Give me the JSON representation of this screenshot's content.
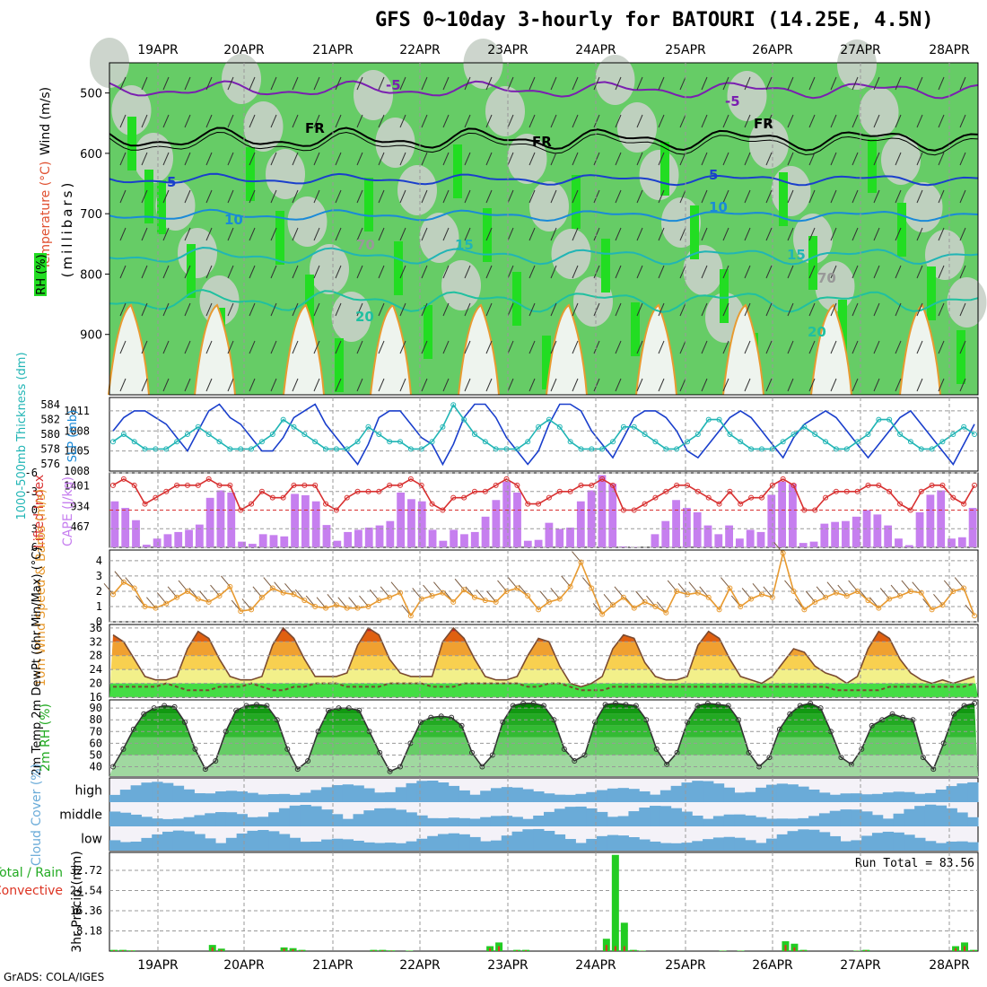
{
  "title": "GFS 0~10day 3-hourly for BATOURI (14.25E, 4.5N)",
  "footer": "GrADS: COLA/IGES",
  "days": [
    "19APR",
    "20APR",
    "21APR",
    "22APR",
    "23APR",
    "24APR",
    "25APR",
    "26APR",
    "27APR",
    "28APR"
  ],
  "colors": {
    "grid": "#999999",
    "frame": "#000000",
    "green_bright": "#22dd22",
    "green_mid": "#66cc66",
    "grey": "#c8d0c8",
    "purple": "#7a1fb0",
    "blue_dark": "#1a3fcc",
    "blue_mid": "#1a8ad8",
    "cyan": "#21b5b5",
    "orange": "#e89a30",
    "cape": "#c67fef",
    "lifted": "#d83030",
    "wind10": "#e89a30",
    "cloud": "#6aabd8",
    "precip_total": "#22cc22",
    "precip_conv": "#dd3322"
  },
  "chart_data": [
    {
      "panel": "upper_air",
      "type": "heatmap",
      "ylabel": "(millibars)",
      "legend_labels": [
        "Wind (m/s)",
        "Temperature (°C)",
        "RH (%)"
      ],
      "yticks": [
        500,
        600,
        700,
        800,
        900
      ],
      "ylim": [
        1000,
        450
      ],
      "contour_labels": [
        "-5",
        "-5",
        "FR",
        "FR",
        "FR",
        "5",
        "5",
        "10",
        "10",
        "15",
        "15",
        "20",
        "20",
        "70",
        "70"
      ]
    },
    {
      "panel": "slp_thickness",
      "type": "line",
      "ylabel_left": "1000-500mb Thickness (dm)",
      "ylabel_right": "SLP (mb)",
      "yticks_left": [
        576,
        578,
        580,
        582,
        584
      ],
      "yticks_right": [
        1005,
        1008,
        1011
      ],
      "extra_tick": "1008",
      "series": [
        {
          "name": "SLP",
          "axis": "right",
          "values": [
            1008,
            1010,
            1011,
            1011,
            1010,
            1009,
            1007,
            1005,
            1008,
            1011,
            1012,
            1010,
            1009,
            1007,
            1005,
            1005,
            1007,
            1010,
            1011,
            1012,
            1009,
            1007,
            1005,
            1003,
            1006,
            1010,
            1011,
            1011,
            1009,
            1007,
            1006,
            1003,
            1006,
            1010,
            1012,
            1012,
            1010,
            1007,
            1005,
            1003,
            1005,
            1009,
            1012,
            1012,
            1011,
            1008,
            1006,
            1004,
            1007,
            1010,
            1011,
            1011,
            1010,
            1008,
            1005,
            1004,
            1006,
            1008,
            1010,
            1011,
            1010,
            1008,
            1006,
            1004,
            1007,
            1009,
            1010,
            1011,
            1010,
            1008,
            1006,
            1004,
            1006,
            1008,
            1010,
            1011,
            1009,
            1007,
            1005,
            1003,
            1006,
            1009
          ]
        },
        {
          "name": "Thickness",
          "axis": "left",
          "values": [
            579,
            580,
            579,
            578,
            578,
            578,
            579,
            580,
            581,
            580,
            579,
            578,
            578,
            578,
            579,
            580,
            582,
            581,
            580,
            579,
            578,
            578,
            578,
            579,
            581,
            580,
            579,
            579,
            578,
            578,
            579,
            581,
            584,
            582,
            580,
            579,
            578,
            578,
            578,
            579,
            581,
            582,
            581,
            579,
            578,
            578,
            578,
            579,
            581,
            581,
            580,
            579,
            578,
            578,
            579,
            580,
            582,
            582,
            580,
            579,
            578,
            578,
            578,
            579,
            580,
            581,
            580,
            579,
            578,
            578,
            579,
            580,
            582,
            582,
            580,
            579,
            578,
            578,
            579,
            580,
            581,
            580
          ]
        }
      ]
    },
    {
      "panel": "cape_li",
      "type": "bar",
      "ylabel_left": "Lifted Index",
      "ylabel_right": "CAPE (J/kg)",
      "yticks_left": [
        -6,
        -3,
        0,
        3,
        6
      ],
      "yticks_right": [
        467,
        934,
        1401
      ],
      "series": [
        {
          "name": "CAPE",
          "values": [
            1050,
            900,
            620,
            60,
            200,
            300,
            350,
            400,
            520,
            1130,
            1300,
            1250,
            130,
            80,
            300,
            280,
            250,
            1220,
            1190,
            1050,
            510,
            150,
            350,
            400,
            450,
            500,
            600,
            1250,
            1100,
            1050,
            400,
            150,
            400,
            300,
            350,
            700,
            1080,
            1500,
            1250,
            150,
            170,
            560,
            420,
            450,
            1050,
            1300,
            1650,
            1450,
            20,
            10,
            0,
            300,
            600,
            1080,
            900,
            800,
            500,
            300,
            500,
            200,
            400,
            350,
            1200,
            1500,
            1450,
            100,
            130,
            540,
            580,
            600,
            700,
            850,
            750,
            500,
            200,
            50,
            800,
            1200,
            1300,
            200,
            230,
            900
          ]
        },
        {
          "name": "LiftedIndex",
          "values": [
            -4,
            -5,
            -4,
            -1,
            -2,
            -3,
            -4,
            -4,
            -4,
            -5,
            -4,
            -4,
            0,
            -1,
            -3,
            -2,
            -2,
            -4,
            -4,
            -4,
            -1,
            0,
            -2,
            -3,
            -3,
            -3,
            -4,
            -4,
            -5,
            -4,
            -1,
            0,
            -2,
            -2,
            -3,
            -3,
            -4,
            -5,
            -4,
            -1,
            -1,
            -2,
            -3,
            -3,
            -4,
            -4,
            -5,
            -4,
            0,
            0,
            -1,
            -2,
            -3,
            -4,
            -4,
            -3,
            -2,
            -1,
            -3,
            -1,
            -2,
            -2,
            -4,
            -5,
            -4,
            0,
            0,
            -2,
            -3,
            -3,
            -3,
            -4,
            -4,
            -3,
            -1,
            0,
            -3,
            -4,
            -4,
            -2,
            -1,
            -4
          ]
        }
      ]
    },
    {
      "panel": "wind10m",
      "type": "line",
      "ylabel": "10m Wind Speed & Barbs (m/s)",
      "yticks": [
        0,
        1,
        2,
        3,
        4
      ],
      "series": [
        {
          "name": "Speed",
          "values": [
            1.8,
            2.6,
            2.2,
            1.0,
            0.9,
            1.2,
            1.6,
            2.0,
            1.5,
            1.3,
            1.7,
            2.3,
            0.7,
            0.8,
            1.6,
            2.2,
            1.9,
            1.8,
            1.4,
            1.0,
            0.9,
            1.1,
            0.9,
            0.9,
            1.0,
            1.4,
            1.6,
            1.9,
            0.4,
            1.5,
            1.7,
            1.9,
            1.3,
            2.1,
            1.6,
            1.4,
            1.3,
            2.0,
            2.2,
            1.7,
            0.8,
            1.3,
            1.5,
            2.3,
            3.9,
            2.2,
            0.5,
            1.1,
            1.6,
            0.9,
            1.3,
            1.0,
            0.6,
            2.0,
            1.8,
            1.9,
            1.6,
            0.8,
            2.2,
            1.0,
            1.5,
            1.8,
            1.6,
            4.5,
            2.0,
            0.8,
            1.3,
            1.6,
            1.9,
            1.7,
            2.0,
            1.4,
            0.9,
            1.5,
            1.7,
            2.0,
            1.9,
            0.8,
            1.1,
            2.0,
            2.2,
            0.4
          ]
        }
      ]
    },
    {
      "panel": "temp2m",
      "type": "area",
      "ylabel": "2m Temp 2m DewPt (6hr Min/Max) (°C)",
      "yticks": [
        16,
        20,
        24,
        28,
        32,
        36
      ],
      "series": [
        {
          "name": "Temp",
          "values": [
            34,
            32,
            27,
            22,
            21,
            21,
            22,
            30,
            35,
            33,
            27,
            22,
            21,
            21,
            22,
            31,
            36,
            33,
            27,
            22,
            22,
            22,
            23,
            31,
            36,
            34,
            27,
            23,
            22,
            22,
            22,
            32,
            36,
            33,
            27,
            22,
            21,
            21,
            22,
            28,
            33,
            32,
            25,
            20,
            19,
            20,
            22,
            30,
            34,
            33,
            26,
            22,
            21,
            21,
            22,
            31,
            35,
            33,
            27,
            22,
            21,
            20,
            22,
            26,
            30,
            29,
            25,
            23,
            22,
            20,
            22,
            30,
            35,
            33,
            27,
            23,
            21,
            20,
            21,
            20,
            21,
            22
          ]
        },
        {
          "name": "DewPt",
          "values": [
            19,
            19,
            19,
            19,
            19,
            20,
            19,
            18,
            18,
            18,
            19,
            19,
            19,
            20,
            19,
            18,
            18,
            19,
            19,
            20,
            20,
            20,
            19,
            19,
            19,
            19,
            20,
            20,
            20,
            20,
            19,
            19,
            19,
            20,
            20,
            20,
            20,
            20,
            20,
            19,
            19,
            20,
            20,
            19,
            18,
            18,
            18,
            19,
            19,
            19,
            19,
            19,
            19,
            19,
            19,
            19,
            19,
            19,
            19,
            19,
            19,
            19,
            19,
            19,
            19,
            19,
            19,
            19,
            18,
            18,
            18,
            18,
            18,
            19,
            19,
            19,
            19,
            19,
            19,
            19,
            19,
            20
          ]
        }
      ]
    },
    {
      "panel": "rh2m",
      "type": "area",
      "ylabel": "2m RH (%)",
      "yticks": [
        40,
        50,
        60,
        70,
        80,
        90
      ],
      "series": [
        {
          "name": "RH",
          "values": [
            40,
            55,
            72,
            85,
            90,
            92,
            91,
            78,
            55,
            38,
            45,
            70,
            88,
            92,
            93,
            92,
            80,
            55,
            38,
            45,
            70,
            88,
            90,
            90,
            88,
            70,
            52,
            36,
            40,
            60,
            78,
            82,
            83,
            82,
            75,
            52,
            40,
            50,
            78,
            92,
            94,
            94,
            92,
            80,
            55,
            45,
            50,
            78,
            93,
            94,
            93,
            92,
            80,
            55,
            42,
            52,
            78,
            92,
            94,
            93,
            92,
            80,
            52,
            40,
            48,
            72,
            85,
            92,
            94,
            90,
            70,
            48,
            42,
            55,
            75,
            80,
            85,
            82,
            80,
            48,
            38,
            60,
            85,
            92,
            94
          ]
        }
      ]
    },
    {
      "panel": "cloud",
      "type": "heatmap",
      "ylabel": "Cloud Cover (%)",
      "categories": [
        "high",
        "middle",
        "low"
      ]
    },
    {
      "panel": "precip",
      "type": "bar",
      "ylabel": "3hr Precip (mm)",
      "legend_labels": [
        "Total / Rain",
        "Convective"
      ],
      "yticks": [
        8.18,
        16.36,
        24.54,
        32.72
      ],
      "annotation": "Run Total = 83.56",
      "series": [
        {
          "name": "Total",
          "values": [
            0.5,
            0.5,
            0.3,
            0,
            0,
            0,
            0,
            0,
            0,
            0,
            0,
            2.5,
            1.0,
            0,
            0,
            0,
            0,
            0,
            0,
            1.5,
            1.2,
            0.5,
            0,
            0,
            0,
            0,
            0,
            0,
            0,
            0.5,
            0.5,
            0.3,
            0,
            0.2,
            0,
            0,
            0,
            0,
            0,
            0,
            0,
            0,
            2.0,
            3.5,
            0,
            0.5,
            0.5,
            0,
            0,
            0,
            0,
            0,
            0,
            0,
            0,
            5.0,
            39.0,
            11.5,
            0.5,
            0.2,
            0,
            0,
            0,
            0,
            0,
            0,
            0,
            0,
            0.2,
            0,
            0.2,
            0,
            0,
            0,
            0,
            4.0,
            3.0,
            0.5,
            0,
            0,
            0,
            0,
            0,
            0.2,
            0.5,
            0,
            0,
            0,
            0,
            0,
            0,
            0,
            0,
            0,
            2.0,
            3.5,
            0.5
          ]
        },
        {
          "name": "Convective",
          "values": [
            0.3,
            0.3,
            0.2,
            0,
            0,
            0,
            0,
            0,
            0,
            0,
            0,
            1.5,
            0.5,
            0,
            0,
            0,
            0,
            0,
            0,
            1.0,
            0.7,
            0.3,
            0,
            0,
            0,
            0,
            0,
            0,
            0,
            0.3,
            0.3,
            0.2,
            0,
            0.1,
            0,
            0,
            0,
            0,
            0,
            0,
            0,
            0,
            1.2,
            2.0,
            0,
            0.3,
            0.3,
            0,
            0,
            0,
            0,
            0,
            0,
            0,
            0,
            2.5,
            2.0,
            2.0,
            0.3,
            0.1,
            0,
            0,
            0,
            0,
            0,
            0,
            0,
            0,
            0.1,
            0,
            0.1,
            0,
            0,
            0,
            0,
            2.5,
            1.5,
            0.3,
            0,
            0,
            0,
            0,
            0,
            0.1,
            0.3,
            0,
            0,
            0,
            0,
            0,
            0,
            0,
            0,
            0,
            1.2,
            2.0,
            0.3
          ]
        }
      ]
    }
  ]
}
